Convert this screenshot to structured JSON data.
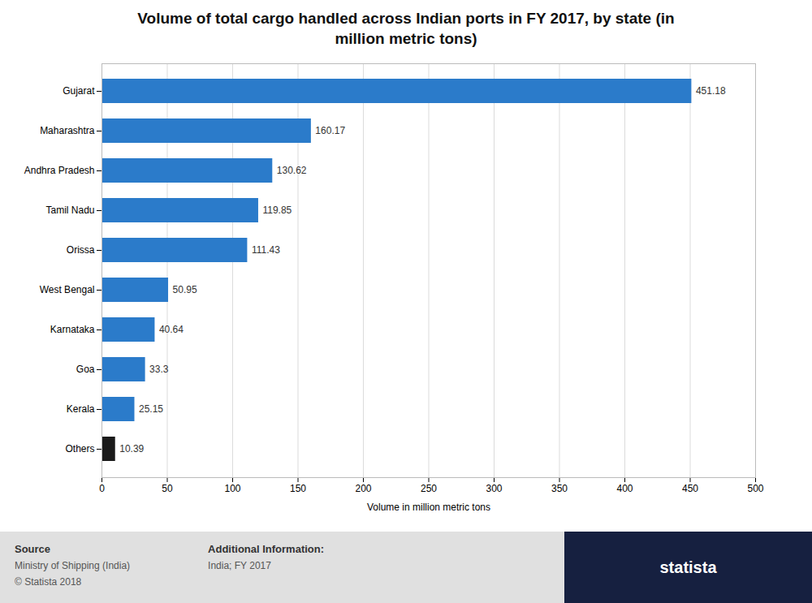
{
  "chart_data": {
    "type": "bar",
    "orientation": "horizontal",
    "title": "Volume of total cargo handled across Indian ports in FY 2017, by state (in\nmillion metric tons)",
    "categories": [
      "Gujarat",
      "Maharashtra",
      "Andhra Pradesh",
      "Tamil Nadu",
      "Orissa",
      "West Bengal",
      "Karnataka",
      "Goa",
      "Kerala",
      "Others"
    ],
    "values": [
      451.18,
      160.17,
      130.62,
      119.85,
      111.43,
      50.95,
      40.64,
      33.3,
      25.15,
      10.39
    ],
    "colors": [
      "#2b7bca",
      "#2b7bca",
      "#2b7bca",
      "#2b7bca",
      "#2b7bca",
      "#2b7bca",
      "#2b7bca",
      "#2b7bca",
      "#2b7bca",
      "#1a1a1a"
    ],
    "xlabel": "Volume in million metric tons",
    "xlim": [
      0,
      500
    ],
    "xticks": [
      0,
      50,
      100,
      150,
      200,
      250,
      300,
      350,
      400,
      450,
      500
    ],
    "grid": true,
    "data_labels": true,
    "annotations": [
      "Source",
      "Ministry of Shipping (India)",
      "© Statista 2018",
      "Additional Information:",
      "India; FY 2017",
      "statista"
    ]
  }
}
